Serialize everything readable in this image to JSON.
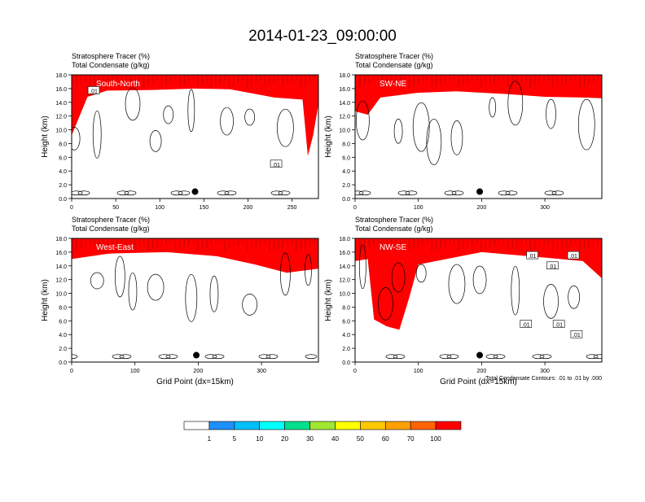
{
  "title": "2014-01-23_09:00:00",
  "chart_data": [
    {
      "type": "heatmap",
      "panel_label": "South-North",
      "title_line1": "Stratosphere Tracer   (%)",
      "title_line2": "Total Condensate   (g/kg)",
      "ylabel": "Height (km)",
      "xlabel": "",
      "xlim": [
        0,
        280
      ],
      "ylim": [
        0,
        18
      ],
      "xticks": [
        0,
        50,
        100,
        150,
        200,
        250
      ],
      "yticks": [
        "0.0",
        "2.0",
        "4.0",
        "6.0",
        "8.0",
        "10.0",
        "12.0",
        "14.0",
        "16.0",
        "18.0"
      ],
      "marker_point": {
        "x": 140,
        "y": 1.0
      },
      "contour_labels": [
        {
          "x": 25,
          "y": 15.7,
          "text": ".01"
        },
        {
          "x": 232,
          "y": 5.0,
          "text": ".01"
        }
      ],
      "tracer_profile": [
        {
          "x": 0,
          "base": 9.0
        },
        {
          "x": 8,
          "base": 11.5
        },
        {
          "x": 18,
          "base": 14.6
        },
        {
          "x": 40,
          "base": 15.5
        },
        {
          "x": 90,
          "base": 15.6
        },
        {
          "x": 140,
          "base": 15.8
        },
        {
          "x": 180,
          "base": 15.7
        },
        {
          "x": 230,
          "base": 14.5
        },
        {
          "x": 262,
          "base": 14.2
        },
        {
          "x": 268,
          "base": 6.0
        },
        {
          "x": 274,
          "base": 9.0
        },
        {
          "x": 280,
          "base": 13.5
        }
      ]
    },
    {
      "type": "heatmap",
      "panel_label": "SW-NE",
      "title_line1": "Stratosphere Tracer   (%)",
      "title_line2": "Total Condensate   (g/kg)",
      "ylabel": "Height (km)",
      "xlabel": "",
      "xlim": [
        0,
        390
      ],
      "ylim": [
        0,
        18
      ],
      "xticks": [
        0,
        100,
        200,
        300
      ],
      "yticks": [
        "0.0",
        "2.0",
        "4.0",
        "6.0",
        "8.0",
        "10.0",
        "12.0",
        "14.0",
        "16.0",
        "18.0"
      ],
      "marker_point": {
        "x": 197,
        "y": 1.0
      },
      "contour_labels": [],
      "tracer_profile": [
        {
          "x": 0,
          "base": 12.5
        },
        {
          "x": 20,
          "base": 12.0
        },
        {
          "x": 40,
          "base": 14.5
        },
        {
          "x": 100,
          "base": 15.2
        },
        {
          "x": 160,
          "base": 15.4
        },
        {
          "x": 240,
          "base": 15.0
        },
        {
          "x": 300,
          "base": 14.6
        },
        {
          "x": 360,
          "base": 14.5
        },
        {
          "x": 390,
          "base": 14.4
        }
      ]
    },
    {
      "type": "heatmap",
      "panel_label": "West-East",
      "title_line1": "Stratosphere Tracer   (%)",
      "title_line2": "Total Condensate   (g/kg)",
      "ylabel": "Height (km)",
      "xlabel": "Grid Point (dx=15km)",
      "xlim": [
        0,
        390
      ],
      "ylim": [
        0,
        18
      ],
      "xticks": [
        0,
        100,
        200,
        300
      ],
      "yticks": [
        "0.0",
        "2.0",
        "4.0",
        "6.0",
        "8.0",
        "10.0",
        "12.0",
        "14.0",
        "16.0",
        "18.0"
      ],
      "marker_point": {
        "x": 197,
        "y": 1.0
      },
      "contour_labels": [],
      "tracer_profile": [
        {
          "x": 0,
          "base": 14.8
        },
        {
          "x": 60,
          "base": 15.6
        },
        {
          "x": 150,
          "base": 15.8
        },
        {
          "x": 230,
          "base": 15.2
        },
        {
          "x": 290,
          "base": 14.0
        },
        {
          "x": 340,
          "base": 12.8
        },
        {
          "x": 390,
          "base": 13.4
        }
      ]
    },
    {
      "type": "heatmap",
      "panel_label": "NW-SE",
      "title_line1": "Stratosphere Tracer   (%)",
      "title_line2": "Total Condensate   (g/kg)",
      "ylabel": "Height (km)",
      "xlabel": "Grid Point (dx=15km)",
      "xlim": [
        0,
        390
      ],
      "ylim": [
        0,
        18
      ],
      "xticks": [
        0,
        100,
        200,
        300
      ],
      "yticks": [
        "0.0",
        "2.0",
        "4.0",
        "6.0",
        "8.0",
        "10.0",
        "12.0",
        "14.0",
        "16.0",
        "18.0"
      ],
      "marker_point": {
        "x": 197,
        "y": 1.0
      },
      "contour_labels": [
        {
          "x": 280,
          "y": 15.5,
          "text": ".01"
        },
        {
          "x": 312,
          "y": 14.0,
          "text": ".01"
        },
        {
          "x": 345,
          "y": 15.5,
          "text": ".01"
        },
        {
          "x": 270,
          "y": 5.5,
          "text": ".01"
        },
        {
          "x": 322,
          "y": 5.5,
          "text": ".01"
        },
        {
          "x": 350,
          "y": 4.0,
          "text": ".01"
        }
      ],
      "contour_note": "Total Condensate Contours: .01 to .01 by .000",
      "tracer_profile": [
        {
          "x": 0,
          "base": 14.5
        },
        {
          "x": 20,
          "base": 14.8
        },
        {
          "x": 30,
          "base": 6.0
        },
        {
          "x": 50,
          "base": 5.0
        },
        {
          "x": 70,
          "base": 4.5
        },
        {
          "x": 85,
          "base": 9.0
        },
        {
          "x": 100,
          "base": 14.0
        },
        {
          "x": 200,
          "base": 15.8
        },
        {
          "x": 300,
          "base": 15.0
        },
        {
          "x": 360,
          "base": 14.5
        },
        {
          "x": 390,
          "base": 12.0
        }
      ]
    }
  ],
  "colorbar": {
    "labels": [
      "1",
      "5",
      "10",
      "20",
      "30",
      "40",
      "50",
      "60",
      "70",
      "100"
    ],
    "colors": [
      "#ffffff",
      "#1e90ff",
      "#00bfff",
      "#00ffff",
      "#00e08c",
      "#00e600",
      "#a0e632",
      "#ffff00",
      "#ffc800",
      "#ffa000",
      "#ff6400",
      "#ff0000"
    ]
  }
}
